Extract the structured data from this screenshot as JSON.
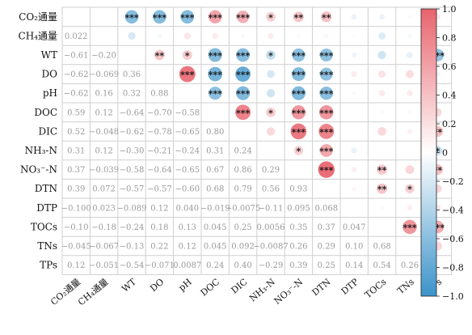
{
  "chart_data": {
    "type": "heatmap",
    "variables": [
      "CO₂通量",
      "CH₄通量",
      "WT",
      "DO",
      "pH",
      "DOC",
      "DIC",
      "NH₃-N",
      "NO₃⁻-N",
      "DTN",
      "DTP",
      "TOCs",
      "TNs",
      "TPs"
    ],
    "variable_keys": [
      "CO2",
      "CH4",
      "WT",
      "DO",
      "pH",
      "DOC",
      "DIC",
      "NH3-N",
      "NO3-N",
      "DTN",
      "DTP",
      "TOCs",
      "TNs",
      "TPs"
    ],
    "lower_triangle_labels": [
      [],
      [
        "0.022"
      ],
      [
        "−0.61",
        "−0.20"
      ],
      [
        "−0.62",
        "−0.069",
        "0.36"
      ],
      [
        "−0.62",
        "0.16",
        "0.32",
        "0.88"
      ],
      [
        "0.59",
        "0.12",
        "−0.64",
        "−0.70",
        "−0.58"
      ],
      [
        "0.52",
        "−0.048",
        "−0.62",
        "−0.78",
        "−0.65",
        "0.80"
      ],
      [
        "0.31",
        "0.12",
        "−0.30",
        "−0.21",
        "−0.24",
        "0.31",
        "0.24"
      ],
      [
        "0.37",
        "−0.039",
        "−0.58",
        "−0.64",
        "−0.65",
        "0.67",
        "0.86",
        "0.29"
      ],
      [
        "0.39",
        "0.072",
        "−0.57",
        "−0.57",
        "−0.60",
        "0.68",
        "0.79",
        "0.56",
        "0.93"
      ],
      [
        "−0.100",
        "0.023",
        "−0.089",
        "0.12",
        "0.040",
        "−0.019",
        "−0.0075",
        "−0.11",
        "0.095",
        "0.068"
      ],
      [
        "−0.10",
        "−0.18",
        "−0.24",
        "0.18",
        "0.13",
        "0.045",
        "0.25",
        "0.0056",
        "0.35",
        "0.37",
        "0.047"
      ],
      [
        "−0.045",
        "−0.067",
        "−0.13",
        "0.22",
        "0.12",
        "0.045",
        "0.092",
        "−0.0087",
        "0.26",
        "0.29",
        "0.10",
        "0.68"
      ],
      [
        "0.12",
        "−0.051",
        "−0.54",
        "−0.071",
        "0.0087",
        "0.24",
        "0.40",
        "−0.29",
        "0.39",
        "0.25",
        "0.14",
        "0.54",
        "0.26"
      ]
    ],
    "upper_triangle_circles": [
      {
        "row": 0,
        "col": 1,
        "r": 0.022,
        "sig": ""
      },
      {
        "row": 0,
        "col": 2,
        "r": -0.61,
        "sig": "***"
      },
      {
        "row": 0,
        "col": 3,
        "r": -0.62,
        "sig": "***"
      },
      {
        "row": 0,
        "col": 4,
        "r": -0.62,
        "sig": "***"
      },
      {
        "row": 0,
        "col": 5,
        "r": 0.59,
        "sig": "***"
      },
      {
        "row": 0,
        "col": 6,
        "r": 0.52,
        "sig": "***"
      },
      {
        "row": 0,
        "col": 7,
        "r": 0.31,
        "sig": "*"
      },
      {
        "row": 0,
        "col": 8,
        "r": 0.37,
        "sig": "**"
      },
      {
        "row": 0,
        "col": 9,
        "r": 0.39,
        "sig": "**"
      },
      {
        "row": 0,
        "col": 10,
        "r": -0.1,
        "sig": ""
      },
      {
        "row": 0,
        "col": 11,
        "r": -0.1,
        "sig": ""
      },
      {
        "row": 0,
        "col": 12,
        "r": -0.045,
        "sig": ""
      },
      {
        "row": 0,
        "col": 13,
        "r": 0.12,
        "sig": ""
      },
      {
        "row": 1,
        "col": 2,
        "r": -0.2,
        "sig": ""
      },
      {
        "row": 1,
        "col": 3,
        "r": -0.069,
        "sig": ""
      },
      {
        "row": 1,
        "col": 4,
        "r": 0.16,
        "sig": ""
      },
      {
        "row": 1,
        "col": 5,
        "r": 0.12,
        "sig": ""
      },
      {
        "row": 1,
        "col": 6,
        "r": -0.048,
        "sig": ""
      },
      {
        "row": 1,
        "col": 7,
        "r": 0.12,
        "sig": ""
      },
      {
        "row": 1,
        "col": 8,
        "r": -0.039,
        "sig": ""
      },
      {
        "row": 1,
        "col": 9,
        "r": 0.072,
        "sig": ""
      },
      {
        "row": 1,
        "col": 10,
        "r": 0.023,
        "sig": ""
      },
      {
        "row": 1,
        "col": 11,
        "r": -0.18,
        "sig": ""
      },
      {
        "row": 1,
        "col": 12,
        "r": -0.067,
        "sig": ""
      },
      {
        "row": 1,
        "col": 13,
        "r": -0.051,
        "sig": ""
      },
      {
        "row": 2,
        "col": 3,
        "r": 0.36,
        "sig": "**"
      },
      {
        "row": 2,
        "col": 4,
        "r": 0.32,
        "sig": "*"
      },
      {
        "row": 2,
        "col": 5,
        "r": -0.64,
        "sig": "***"
      },
      {
        "row": 2,
        "col": 6,
        "r": -0.62,
        "sig": "***"
      },
      {
        "row": 2,
        "col": 7,
        "r": -0.3,
        "sig": "*"
      },
      {
        "row": 2,
        "col": 8,
        "r": -0.58,
        "sig": "***"
      },
      {
        "row": 2,
        "col": 9,
        "r": -0.57,
        "sig": "***"
      },
      {
        "row": 2,
        "col": 10,
        "r": -0.089,
        "sig": ""
      },
      {
        "row": 2,
        "col": 11,
        "r": -0.24,
        "sig": ""
      },
      {
        "row": 2,
        "col": 12,
        "r": -0.13,
        "sig": ""
      },
      {
        "row": 2,
        "col": 13,
        "r": -0.54,
        "sig": "***"
      },
      {
        "row": 3,
        "col": 4,
        "r": 0.88,
        "sig": "***"
      },
      {
        "row": 3,
        "col": 5,
        "r": -0.7,
        "sig": "***"
      },
      {
        "row": 3,
        "col": 6,
        "r": -0.78,
        "sig": "***"
      },
      {
        "row": 3,
        "col": 7,
        "r": -0.21,
        "sig": ""
      },
      {
        "row": 3,
        "col": 8,
        "r": -0.64,
        "sig": "***"
      },
      {
        "row": 3,
        "col": 9,
        "r": -0.57,
        "sig": "***"
      },
      {
        "row": 3,
        "col": 10,
        "r": 0.12,
        "sig": ""
      },
      {
        "row": 3,
        "col": 11,
        "r": 0.18,
        "sig": ""
      },
      {
        "row": 3,
        "col": 12,
        "r": 0.22,
        "sig": ""
      },
      {
        "row": 3,
        "col": 13,
        "r": -0.071,
        "sig": ""
      },
      {
        "row": 4,
        "col": 5,
        "r": -0.58,
        "sig": "***"
      },
      {
        "row": 4,
        "col": 6,
        "r": -0.65,
        "sig": "***"
      },
      {
        "row": 4,
        "col": 7,
        "r": -0.24,
        "sig": ""
      },
      {
        "row": 4,
        "col": 8,
        "r": -0.65,
        "sig": "***"
      },
      {
        "row": 4,
        "col": 9,
        "r": -0.6,
        "sig": "***"
      },
      {
        "row": 4,
        "col": 10,
        "r": 0.04,
        "sig": ""
      },
      {
        "row": 4,
        "col": 11,
        "r": 0.13,
        "sig": ""
      },
      {
        "row": 4,
        "col": 12,
        "r": 0.12,
        "sig": ""
      },
      {
        "row": 4,
        "col": 13,
        "r": 0.0087,
        "sig": ""
      },
      {
        "row": 5,
        "col": 6,
        "r": 0.8,
        "sig": "***"
      },
      {
        "row": 5,
        "col": 7,
        "r": 0.31,
        "sig": "*"
      },
      {
        "row": 5,
        "col": 8,
        "r": 0.67,
        "sig": "***"
      },
      {
        "row": 5,
        "col": 9,
        "r": 0.68,
        "sig": "***"
      },
      {
        "row": 5,
        "col": 10,
        "r": -0.019,
        "sig": ""
      },
      {
        "row": 5,
        "col": 11,
        "r": 0.045,
        "sig": ""
      },
      {
        "row": 5,
        "col": 12,
        "r": 0.045,
        "sig": ""
      },
      {
        "row": 5,
        "col": 13,
        "r": 0.24,
        "sig": ""
      },
      {
        "row": 6,
        "col": 7,
        "r": 0.24,
        "sig": ""
      },
      {
        "row": 6,
        "col": 8,
        "r": 0.86,
        "sig": "***"
      },
      {
        "row": 6,
        "col": 9,
        "r": 0.79,
        "sig": "***"
      },
      {
        "row": 6,
        "col": 10,
        "r": -0.0075,
        "sig": ""
      },
      {
        "row": 6,
        "col": 11,
        "r": 0.25,
        "sig": ""
      },
      {
        "row": 6,
        "col": 12,
        "r": 0.092,
        "sig": ""
      },
      {
        "row": 6,
        "col": 13,
        "r": 0.4,
        "sig": "**"
      },
      {
        "row": 7,
        "col": 8,
        "r": 0.29,
        "sig": "*"
      },
      {
        "row": 7,
        "col": 9,
        "r": 0.56,
        "sig": "***"
      },
      {
        "row": 7,
        "col": 10,
        "r": -0.11,
        "sig": ""
      },
      {
        "row": 7,
        "col": 11,
        "r": 0.0056,
        "sig": ""
      },
      {
        "row": 7,
        "col": 12,
        "r": -0.0087,
        "sig": ""
      },
      {
        "row": 7,
        "col": 13,
        "r": -0.29,
        "sig": "*"
      },
      {
        "row": 8,
        "col": 9,
        "r": 0.93,
        "sig": "***"
      },
      {
        "row": 8,
        "col": 10,
        "r": 0.095,
        "sig": ""
      },
      {
        "row": 8,
        "col": 11,
        "r": 0.35,
        "sig": "**"
      },
      {
        "row": 8,
        "col": 12,
        "r": 0.26,
        "sig": ""
      },
      {
        "row": 8,
        "col": 13,
        "r": 0.39,
        "sig": "**"
      },
      {
        "row": 9,
        "col": 10,
        "r": 0.068,
        "sig": ""
      },
      {
        "row": 9,
        "col": 11,
        "r": 0.37,
        "sig": "**"
      },
      {
        "row": 9,
        "col": 12,
        "r": 0.29,
        "sig": "*"
      },
      {
        "row": 9,
        "col": 13,
        "r": 0.25,
        "sig": ""
      },
      {
        "row": 10,
        "col": 11,
        "r": 0.047,
        "sig": ""
      },
      {
        "row": 10,
        "col": 12,
        "r": 0.1,
        "sig": ""
      },
      {
        "row": 10,
        "col": 13,
        "r": 0.14,
        "sig": ""
      },
      {
        "row": 11,
        "col": 12,
        "r": 0.68,
        "sig": "***"
      },
      {
        "row": 11,
        "col": 13,
        "r": 0.54,
        "sig": "***"
      },
      {
        "row": 12,
        "col": 13,
        "r": 0.26,
        "sig": ""
      }
    ],
    "colorbar": {
      "range": [
        -1,
        1
      ],
      "ticks": [
        "1.0",
        "0.8",
        "0.6",
        "0.4",
        "0.2",
        "0",
        "−0.2",
        "−0.4",
        "−0.6",
        "−0.8",
        "−1.0"
      ],
      "tick_values": [
        1,
        0.8,
        0.6,
        0.4,
        0.2,
        0,
        -0.2,
        -0.4,
        -0.6,
        -0.8,
        -1
      ],
      "placement": "right",
      "positive_color": "#e8636d",
      "neutral_color": "#ffffff",
      "negative_color": "#3b93c9"
    },
    "title": "",
    "xlabel": "",
    "ylabel": ""
  }
}
